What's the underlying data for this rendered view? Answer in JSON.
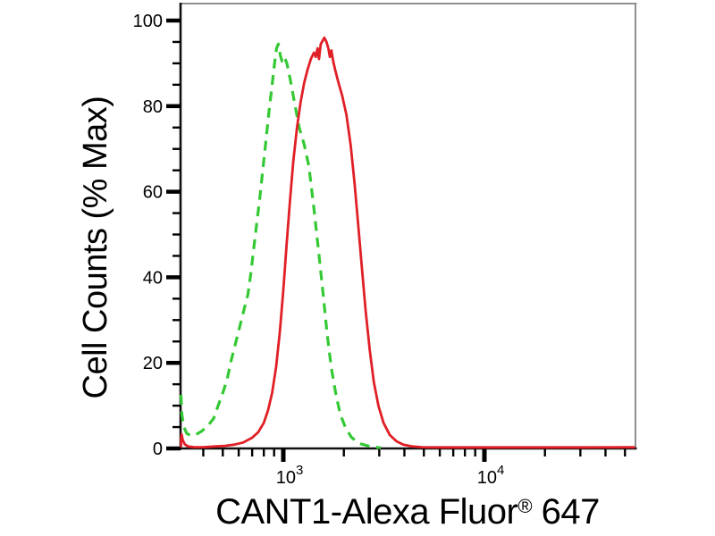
{
  "chart_data": {
    "type": "line",
    "subtype": "flow-cytometry-histogram-overlay",
    "title": "",
    "background": "#ffffff",
    "xlabel": "CANT1-Alexa Fluor® 647",
    "xlabel_parts": {
      "pre": "CANT1-Alexa Fluor",
      "sup": "®",
      "post": " 647"
    },
    "ylabel": "Cell Counts (% Max)",
    "x_axis": {
      "scale": "log10",
      "min": 309,
      "max": 56000,
      "major_ticks": [
        {
          "value": 1000,
          "base": "10",
          "exponent": "3"
        },
        {
          "value": 10000,
          "base": "10",
          "exponent": "4"
        }
      ],
      "minor_ticks": [
        400,
        500,
        600,
        700,
        800,
        900,
        2000,
        3000,
        4000,
        5000,
        6000,
        7000,
        8000,
        9000,
        20000,
        30000,
        40000,
        50000
      ]
    },
    "y_axis": {
      "min": 0,
      "max": 104,
      "major_ticks": [
        0,
        20,
        40,
        60,
        80,
        100
      ],
      "minor_tick_step": 5,
      "grid": false
    },
    "legend": {
      "visible": false
    },
    "axis_colors": {
      "axis": "#111111",
      "frame": "#8f8f8f",
      "text": "#000000"
    },
    "series": [
      {
        "name": "green-dashed-curve",
        "color": "#34c934",
        "line_style": "dashed",
        "peak": {
          "x": 945,
          "y": 94.5
        },
        "points": [
          [
            309,
            12.5
          ],
          [
            313,
            8
          ],
          [
            320,
            5
          ],
          [
            331,
            3.5
          ],
          [
            346,
            3
          ],
          [
            366,
            3.2
          ],
          [
            392,
            4
          ],
          [
            420,
            5.2
          ],
          [
            450,
            7
          ],
          [
            470,
            9.5
          ],
          [
            500,
            13
          ],
          [
            525,
            16
          ],
          [
            547,
            20
          ],
          [
            575,
            24
          ],
          [
            600,
            27.5
          ],
          [
            630,
            31.5
          ],
          [
            667,
            36
          ],
          [
            690,
            41
          ],
          [
            710,
            46
          ],
          [
            735,
            52
          ],
          [
            762,
            58
          ],
          [
            790,
            65
          ],
          [
            820,
            72
          ],
          [
            850,
            79
          ],
          [
            880,
            85
          ],
          [
            905,
            90
          ],
          [
            925,
            93.5
          ],
          [
            945,
            94.5
          ],
          [
            965,
            92
          ],
          [
            985,
            90.5
          ],
          [
            1012,
            91.5
          ],
          [
            1042,
            90
          ],
          [
            1085,
            86
          ],
          [
            1140,
            80.5
          ],
          [
            1200,
            75
          ],
          [
            1270,
            71
          ],
          [
            1340,
            66
          ],
          [
            1420,
            56
          ],
          [
            1490,
            47
          ],
          [
            1570,
            37
          ],
          [
            1650,
            27
          ],
          [
            1730,
            19
          ],
          [
            1820,
            13
          ],
          [
            1920,
            8
          ],
          [
            2040,
            4.8
          ],
          [
            2180,
            2.6
          ],
          [
            2380,
            1.2
          ],
          [
            2680,
            0.5
          ],
          [
            3050,
            0.15
          ]
        ]
      },
      {
        "name": "red-solid-curve",
        "color": "#e01f26",
        "line_style": "solid",
        "peak": {
          "x": 1600,
          "y": 96
        },
        "points": [
          [
            309,
            0.5
          ],
          [
            310,
            2.2
          ],
          [
            312,
            3.3
          ],
          [
            316,
            2
          ],
          [
            323,
            1
          ],
          [
            336,
            0.45
          ],
          [
            362,
            0.3
          ],
          [
            400,
            0.3
          ],
          [
            452,
            0.45
          ],
          [
            512,
            0.6
          ],
          [
            572,
            0.9
          ],
          [
            632,
            1.4
          ],
          [
            700,
            2.5
          ],
          [
            750,
            3.8
          ],
          [
            800,
            6
          ],
          [
            840,
            9
          ],
          [
            880,
            13
          ],
          [
            920,
            19
          ],
          [
            960,
            27
          ],
          [
            1000,
            37
          ],
          [
            1040,
            48
          ],
          [
            1080,
            58
          ],
          [
            1120,
            67
          ],
          [
            1170,
            75
          ],
          [
            1220,
            81
          ],
          [
            1270,
            85.5
          ],
          [
            1320,
            88.5
          ],
          [
            1370,
            91
          ],
          [
            1420,
            92.5
          ],
          [
            1450,
            91.5
          ],
          [
            1480,
            93.5
          ],
          [
            1505,
            91
          ],
          [
            1535,
            94.5
          ],
          [
            1565,
            95.2
          ],
          [
            1600,
            96
          ],
          [
            1640,
            95
          ],
          [
            1675,
            93.5
          ],
          [
            1705,
            91.5
          ],
          [
            1735,
            93
          ],
          [
            1770,
            90.5
          ],
          [
            1810,
            88.5
          ],
          [
            1880,
            85.5
          ],
          [
            1960,
            82.5
          ],
          [
            2060,
            78
          ],
          [
            2160,
            71
          ],
          [
            2260,
            62
          ],
          [
            2360,
            52
          ],
          [
            2460,
            42
          ],
          [
            2570,
            32
          ],
          [
            2690,
            23
          ],
          [
            2820,
            15.5
          ],
          [
            2970,
            10
          ],
          [
            3150,
            6
          ],
          [
            3380,
            3.2
          ],
          [
            3650,
            1.7
          ],
          [
            3950,
            0.9
          ],
          [
            4350,
            0.5
          ],
          [
            4900,
            0.3
          ],
          [
            6000,
            0.25
          ],
          [
            9000,
            0.25
          ],
          [
            15000,
            0.25
          ],
          [
            30000,
            0.25
          ],
          [
            55500,
            0.3
          ]
        ]
      }
    ]
  }
}
